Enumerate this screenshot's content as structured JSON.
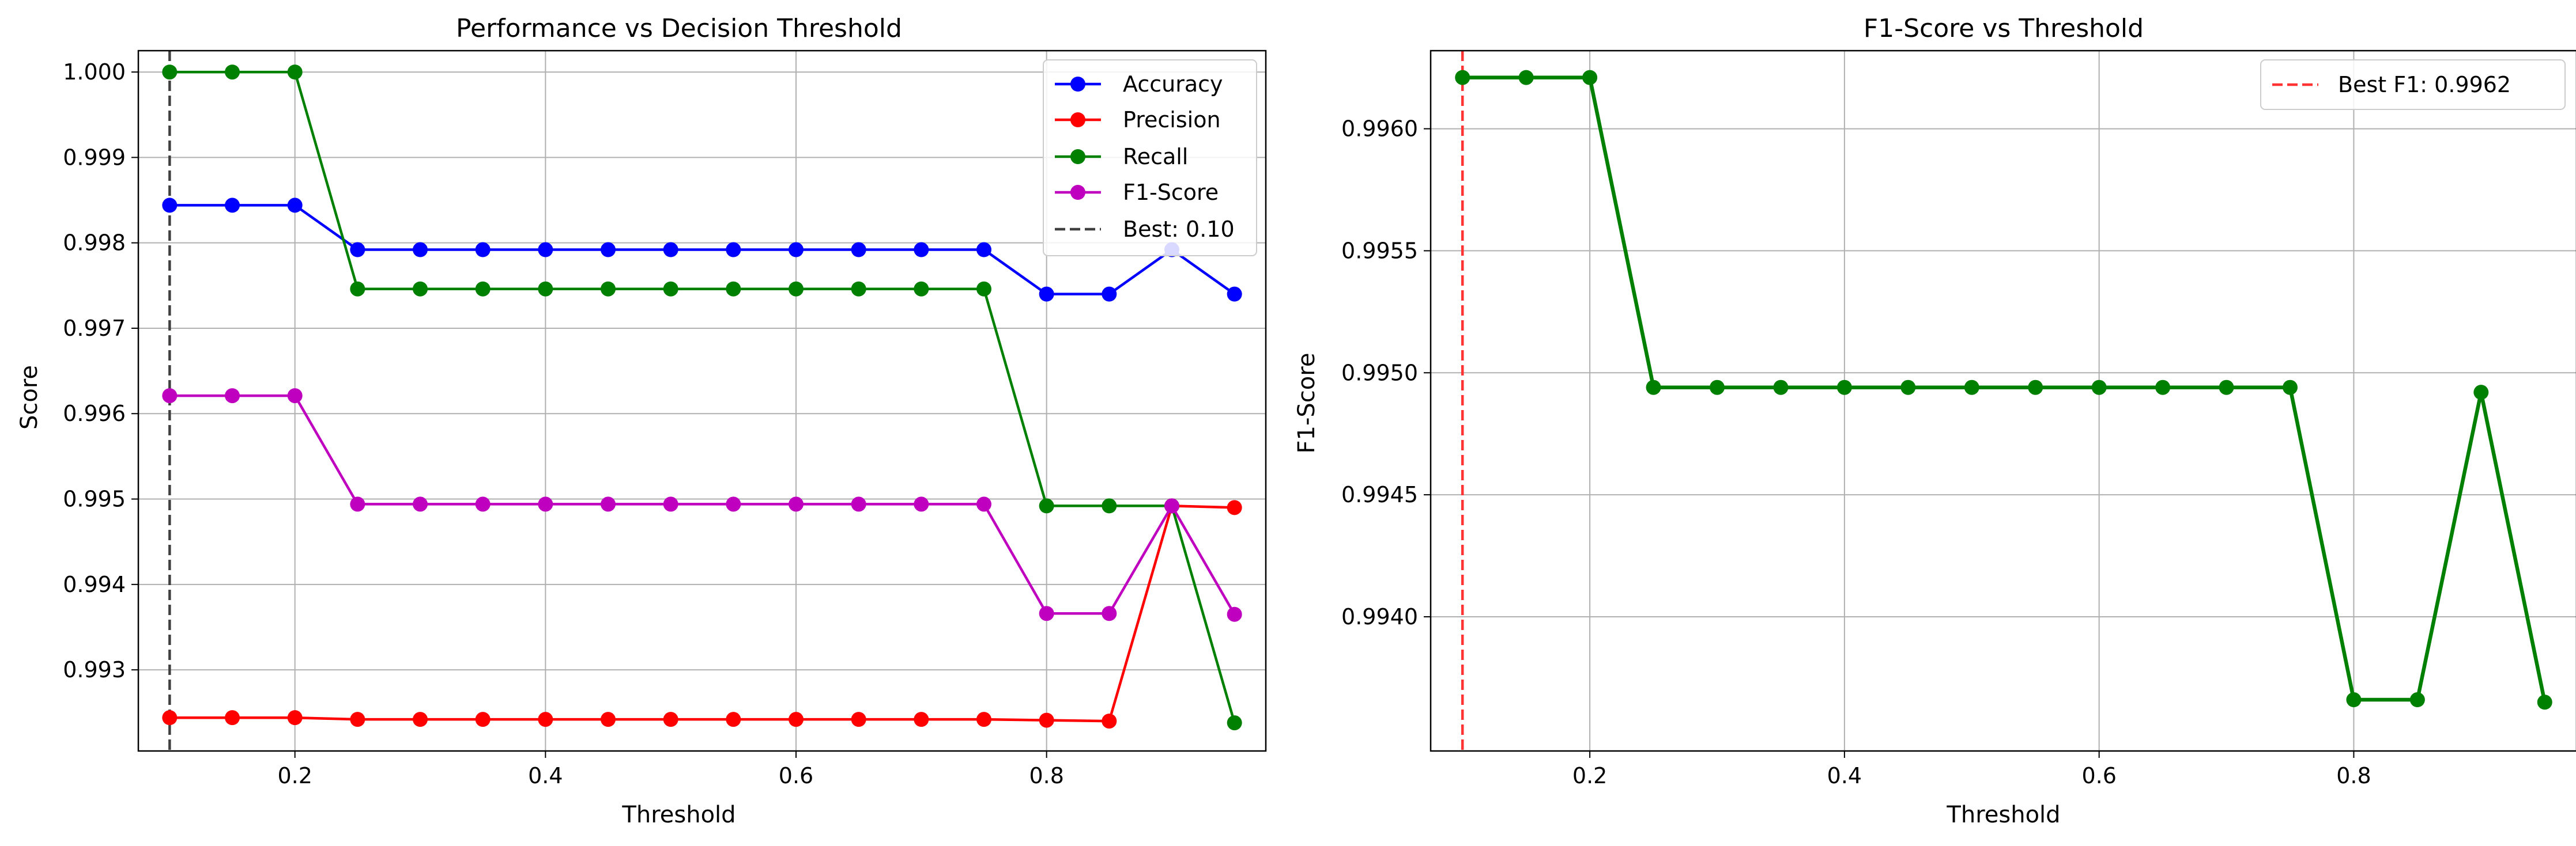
{
  "chart_data": [
    {
      "type": "line",
      "title": "Performance vs Decision Threshold",
      "xlabel": "Threshold",
      "ylabel": "Score",
      "xlim": [
        0.075,
        0.975
      ],
      "ylim": [
        0.99205,
        1.00025
      ],
      "xticks": [
        "0.2",
        "0.4",
        "0.6",
        "0.8"
      ],
      "yticks": [
        "0.993",
        "0.994",
        "0.995",
        "0.996",
        "0.997",
        "0.998",
        "0.999",
        "1.000"
      ],
      "grid": true,
      "legend_position": "top-right",
      "x": [
        0.1,
        0.15,
        0.2,
        0.25,
        0.3,
        0.35,
        0.4,
        0.45,
        0.5,
        0.55,
        0.6,
        0.65,
        0.7,
        0.75,
        0.8,
        0.85,
        0.9,
        0.95
      ],
      "series": [
        {
          "name": "Accuracy",
          "color": "#0000ff",
          "values": [
            0.99844,
            0.99844,
            0.99844,
            0.99792,
            0.99792,
            0.99792,
            0.99792,
            0.99792,
            0.99792,
            0.99792,
            0.99792,
            0.99792,
            0.99792,
            0.99792,
            0.9974,
            0.9974,
            0.99792,
            0.9974
          ]
        },
        {
          "name": "Precision",
          "color": "#ff0000",
          "values": [
            0.99244,
            0.99244,
            0.99244,
            0.99242,
            0.99242,
            0.99242,
            0.99242,
            0.99242,
            0.99242,
            0.99242,
            0.99242,
            0.99242,
            0.99242,
            0.99242,
            0.99241,
            0.9924,
            0.99492,
            0.9949
          ]
        },
        {
          "name": "Recall",
          "color": "#008000",
          "values": [
            1.0,
            1.0,
            1.0,
            0.99746,
            0.99746,
            0.99746,
            0.99746,
            0.99746,
            0.99746,
            0.99746,
            0.99746,
            0.99746,
            0.99746,
            0.99746,
            0.99492,
            0.99492,
            0.99492,
            0.99238
          ]
        },
        {
          "name": "F1-Score",
          "color": "#bf00bf",
          "values": [
            0.99621,
            0.99621,
            0.99621,
            0.99494,
            0.99494,
            0.99494,
            0.99494,
            0.99494,
            0.99494,
            0.99494,
            0.99494,
            0.99494,
            0.99494,
            0.99494,
            0.99366,
            0.99366,
            0.99492,
            0.99365
          ]
        }
      ],
      "reference_line": {
        "label": "Best: 0.10",
        "x": 0.1,
        "color": "#404040"
      }
    },
    {
      "type": "line",
      "title": "F1-Score vs Threshold",
      "xlabel": "Threshold",
      "ylabel": "F1-Score",
      "xlim": [
        0.075,
        0.975
      ],
      "ylim": [
        0.99345,
        0.99632
      ],
      "xticks": [
        "0.2",
        "0.4",
        "0.6",
        "0.8"
      ],
      "yticks": [
        "0.9940",
        "0.9945",
        "0.9950",
        "0.9955",
        "0.9960"
      ],
      "grid": true,
      "legend_position": "top-right",
      "x": [
        0.1,
        0.15,
        0.2,
        0.25,
        0.3,
        0.35,
        0.4,
        0.45,
        0.5,
        0.55,
        0.6,
        0.65,
        0.7,
        0.75,
        0.8,
        0.85,
        0.9,
        0.95
      ],
      "series": [
        {
          "name": "",
          "color": "#008000",
          "values": [
            0.99621,
            0.99621,
            0.99621,
            0.99494,
            0.99494,
            0.99494,
            0.99494,
            0.99494,
            0.99494,
            0.99494,
            0.99494,
            0.99494,
            0.99494,
            0.99494,
            0.99366,
            0.99366,
            0.99492,
            0.99365
          ]
        }
      ],
      "reference_line": {
        "label": "Best F1: 0.9962",
        "x": 0.1,
        "color": "#ff3333"
      }
    }
  ]
}
